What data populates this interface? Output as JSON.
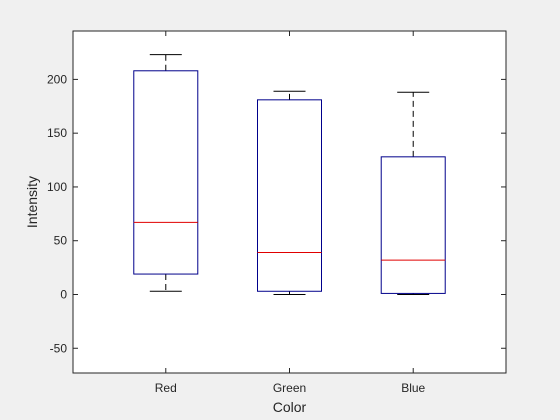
{
  "chart_data": {
    "type": "box",
    "xlabel": "Color",
    "ylabel": "Intensity",
    "ylim": [
      -73,
      245
    ],
    "yticks": [
      -50,
      0,
      50,
      100,
      150,
      200
    ],
    "categories": [
      "Red",
      "Green",
      "Blue"
    ],
    "boxes": [
      {
        "category": "Red",
        "whisker_low": 3,
        "q1": 19,
        "median": 67,
        "q3": 208,
        "whisker_high": 223
      },
      {
        "category": "Green",
        "whisker_low": 0,
        "q1": 3,
        "median": 39,
        "q3": 181,
        "whisker_high": 189
      },
      {
        "category": "Blue",
        "whisker_low": 0,
        "q1": 1,
        "median": 32,
        "q3": 128,
        "whisker_high": 188
      }
    ],
    "grid": false,
    "colors": {
      "box": "#00008b",
      "median": "#e00000",
      "whisker": "#000000",
      "axes": "#262626",
      "plot_bg": "#ffffff",
      "figure_bg": "#f0f0f0"
    }
  }
}
